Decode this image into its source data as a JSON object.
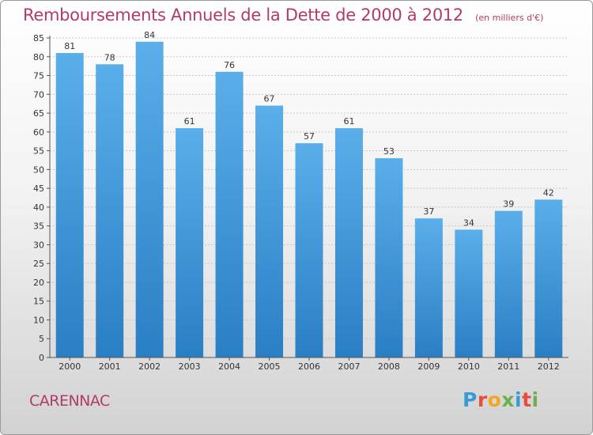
{
  "chart_data": {
    "type": "bar",
    "title": "Remboursements Annuels de la Dette de 2000 à 2012",
    "unit_note": "(en milliers d'€)",
    "categories": [
      "2000",
      "2001",
      "2002",
      "2003",
      "2004",
      "2005",
      "2006",
      "2007",
      "2008",
      "2009",
      "2010",
      "2011",
      "2012"
    ],
    "values": [
      81,
      78,
      84,
      61,
      76,
      67,
      57,
      61,
      53,
      37,
      34,
      39,
      42
    ],
    "ylim": [
      0,
      85
    ],
    "yticks": [
      0,
      5,
      10,
      15,
      20,
      25,
      30,
      35,
      40,
      45,
      50,
      55,
      60,
      65,
      70,
      75,
      80,
      85
    ],
    "grid": true,
    "xlabel": "",
    "ylabel": "",
    "bar_color_top": "#5aaee9",
    "bar_color_bottom": "#2a7fc4"
  },
  "footer": {
    "commune": "CARENNAC",
    "brand": "Proxiti",
    "brand_colors": [
      "#3a9ad9",
      "#e94e3c",
      "#f3a623",
      "#6ab04c",
      "#3a9ad9",
      "#e94e3c",
      "#6ab04c"
    ]
  },
  "colors": {
    "title": "#b23a6a",
    "axis": "#555555",
    "grid": "#c8c8c8"
  }
}
